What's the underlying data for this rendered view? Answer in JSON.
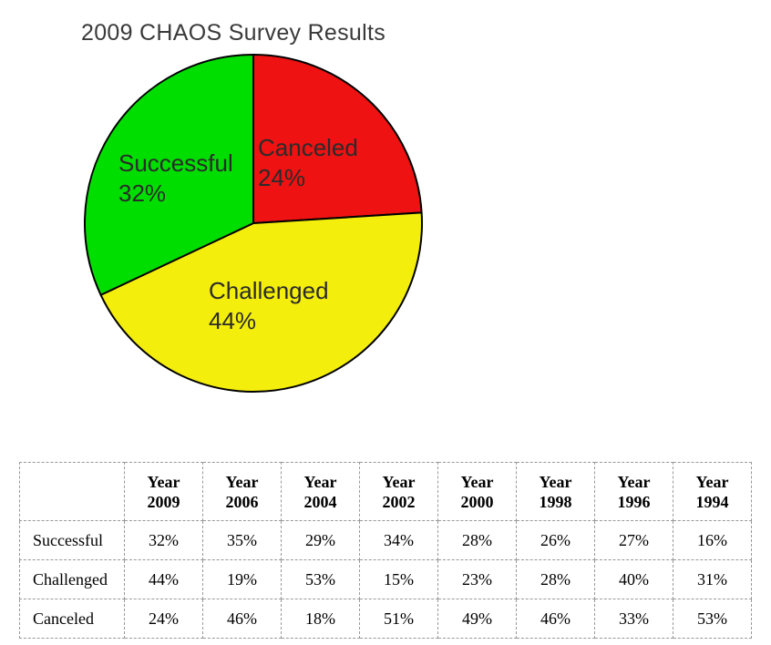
{
  "chart_data": {
    "type": "pie",
    "title": "2009 CHAOS Survey Results",
    "start_angle": "top",
    "direction": "clockwise",
    "outline_color": "#000000",
    "slices": [
      {
        "label": "Canceled",
        "value": 24,
        "pct_label": "24%",
        "color": "#EE1212"
      },
      {
        "label": "Challenged",
        "value": 44,
        "pct_label": "44%",
        "color": "#F4EE0C"
      },
      {
        "label": "Successful",
        "value": 32,
        "pct_label": "32%",
        "color": "#00DE00"
      }
    ]
  },
  "table": {
    "columns": [
      "Year\n2009",
      "Year\n2006",
      "Year\n2004",
      "Year\n2002",
      "Year\n2000",
      "Year\n1998",
      "Year\n1996",
      "Year\n1994"
    ],
    "rows": [
      {
        "label": "Successful",
        "values": [
          "32%",
          "35%",
          "29%",
          "34%",
          "28%",
          "26%",
          "27%",
          "16%"
        ]
      },
      {
        "label": "Challenged",
        "values": [
          "44%",
          "19%",
          "53%",
          "15%",
          "23%",
          "28%",
          "40%",
          "31%"
        ]
      },
      {
        "label": "Canceled",
        "values": [
          "24%",
          "46%",
          "18%",
          "51%",
          "49%",
          "46%",
          "33%",
          "53%"
        ]
      }
    ]
  }
}
